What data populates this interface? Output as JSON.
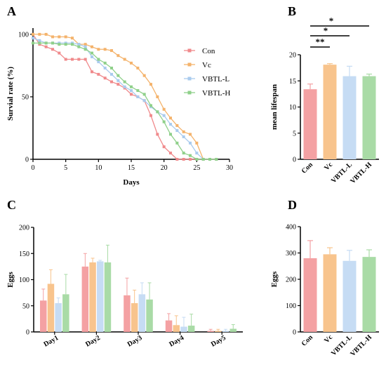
{
  "colors": {
    "Con": "#F4A1A3",
    "Vc": "#F8C48D",
    "VBTL-L": "#C6DCF4",
    "VBTL-H": "#A9DBA6",
    "Con_line": "#F08A8C",
    "Vc_line": "#F4B36C",
    "VBTL-L_line": "#A9CBEE",
    "VBTL-H_line": "#8FD08A"
  },
  "chart_data": [
    {
      "panel": "A",
      "type": "line",
      "xlabel": "Days",
      "ylabel": "Survial rate (%)",
      "xlim": [
        0,
        30
      ],
      "ylim": [
        0,
        105
      ],
      "xticks": [
        "0",
        "5",
        "10",
        "15",
        "20",
        "25",
        "30"
      ],
      "yticks": [
        "0",
        "50",
        "100"
      ],
      "legend_position": "top-right",
      "series": [
        {
          "name": "Con",
          "x": [
            0,
            1,
            2,
            3,
            4,
            5,
            6,
            7,
            8,
            9,
            10,
            11,
            12,
            13,
            14,
            15,
            16,
            17,
            18,
            19,
            20,
            21,
            22,
            23,
            24,
            25,
            26,
            27,
            28
          ],
          "y": [
            100,
            92,
            90,
            88,
            85,
            80,
            80,
            80,
            80,
            70,
            68,
            65,
            62,
            60,
            57,
            52,
            50,
            47,
            35,
            20,
            10,
            5,
            0,
            0,
            0,
            0,
            0,
            0,
            0
          ]
        },
        {
          "name": "Vc",
          "x": [
            0,
            1,
            2,
            3,
            4,
            5,
            6,
            7,
            8,
            9,
            10,
            11,
            12,
            13,
            14,
            15,
            16,
            17,
            18,
            19,
            20,
            21,
            22,
            23,
            24,
            25,
            26,
            27,
            28
          ],
          "y": [
            100,
            100,
            100,
            98,
            98,
            98,
            97,
            92,
            92,
            90,
            88,
            88,
            87,
            83,
            80,
            77,
            73,
            67,
            60,
            50,
            40,
            33,
            27,
            22,
            20,
            13,
            0,
            0,
            0
          ]
        },
        {
          "name": "VBTL-L",
          "x": [
            0,
            1,
            2,
            3,
            4,
            5,
            6,
            7,
            8,
            9,
            10,
            11,
            12,
            13,
            14,
            15,
            16,
            17,
            18,
            19,
            20,
            21,
            22,
            23,
            24,
            25,
            26,
            27,
            28
          ],
          "y": [
            97,
            95,
            93,
            93,
            93,
            93,
            93,
            92,
            90,
            82,
            78,
            73,
            68,
            63,
            58,
            55,
            50,
            47,
            42,
            38,
            35,
            28,
            23,
            18,
            13,
            5,
            0,
            0,
            0
          ]
        },
        {
          "name": "VBTL-H",
          "x": [
            0,
            1,
            2,
            3,
            4,
            5,
            6,
            7,
            8,
            9,
            10,
            11,
            12,
            13,
            14,
            15,
            16,
            17,
            18,
            19,
            20,
            21,
            22,
            23,
            24,
            25,
            26,
            27,
            28
          ],
          "y": [
            93,
            93,
            93,
            93,
            92,
            92,
            92,
            90,
            88,
            85,
            80,
            77,
            73,
            67,
            62,
            58,
            55,
            52,
            43,
            38,
            30,
            20,
            13,
            5,
            3,
            0,
            0,
            0,
            0
          ]
        }
      ]
    },
    {
      "panel": "B",
      "type": "bar",
      "xlabel": "",
      "ylabel": "mean lifespan",
      "ylim": [
        0,
        20
      ],
      "yticks": [
        "0",
        "5",
        "10",
        "15",
        "20"
      ],
      "categories": [
        "Con",
        "Vc",
        "VBTL-L",
        "VBTL-H"
      ],
      "values": [
        13.4,
        18.1,
        15.9,
        15.9
      ],
      "errors": [
        1.0,
        0.2,
        1.9,
        0.4
      ],
      "significance": [
        {
          "from": 0,
          "to": 1,
          "label": "**"
        },
        {
          "from": 0,
          "to": 2,
          "label": "*"
        },
        {
          "from": 0,
          "to": 3,
          "label": "*"
        }
      ]
    },
    {
      "panel": "C",
      "type": "bar",
      "xlabel": "",
      "ylabel": "Eggs",
      "ylim": [
        0,
        200
      ],
      "yticks": [
        "0",
        "50",
        "100",
        "150",
        "200"
      ],
      "categories": [
        "Day1",
        "Day2",
        "Day3",
        "Day4",
        "Day5"
      ],
      "series": [
        {
          "name": "Con",
          "values": [
            60,
            125,
            70,
            22,
            2
          ],
          "errors": [
            22,
            25,
            33,
            13,
            3
          ]
        },
        {
          "name": "Vc",
          "values": [
            92,
            133,
            55,
            13,
            2
          ],
          "errors": [
            27,
            8,
            25,
            18,
            3
          ]
        },
        {
          "name": "VBTL-L",
          "values": [
            55,
            135,
            72,
            10,
            2
          ],
          "errors": [
            10,
            2,
            22,
            18,
            3
          ]
        },
        {
          "name": "VBTL-H",
          "values": [
            72,
            133,
            62,
            12,
            6
          ],
          "errors": [
            38,
            33,
            32,
            22,
            8
          ]
        }
      ]
    },
    {
      "panel": "D",
      "type": "bar",
      "xlabel": "",
      "ylabel": "Eggs",
      "ylim": [
        0,
        400
      ],
      "yticks": [
        "0",
        "100",
        "200",
        "300",
        "400"
      ],
      "categories": [
        "Con",
        "Vc",
        "VBTL-L",
        "VBTL-H"
      ],
      "values": [
        280,
        295,
        270,
        285
      ],
      "errors": [
        67,
        25,
        40,
        27
      ]
    }
  ]
}
